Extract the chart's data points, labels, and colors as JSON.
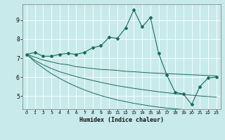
{
  "xlabel": "Humidex (Indice chaleur)",
  "bg_color": "#c8eaea",
  "line_color": "#1a6b5a",
  "grid_color": "#ffffff",
  "x_ticks": [
    0,
    1,
    2,
    3,
    4,
    5,
    6,
    7,
    8,
    9,
    10,
    11,
    12,
    13,
    14,
    15,
    16,
    17,
    18,
    19,
    20,
    21,
    22,
    23
  ],
  "y_ticks": [
    5,
    6,
    7,
    8,
    9
  ],
  "ylim": [
    4.3,
    9.85
  ],
  "xlim": [
    -0.5,
    23.5
  ],
  "main_line": [
    7.2,
    7.3,
    7.1,
    7.1,
    7.2,
    7.25,
    7.2,
    7.3,
    7.55,
    7.65,
    8.1,
    8.05,
    8.6,
    9.55,
    8.65,
    9.15,
    7.25,
    6.1,
    5.2,
    5.1,
    4.55,
    5.5,
    5.95,
    6.0
  ],
  "lower_line1": [
    7.2,
    7.05,
    6.9,
    6.8,
    6.7,
    6.65,
    6.55,
    6.5,
    6.45,
    6.4,
    6.38,
    6.35,
    6.3,
    6.28,
    6.25,
    6.22,
    6.2,
    6.18,
    6.16,
    6.14,
    6.12,
    6.1,
    6.08,
    6.06
  ],
  "lower_line2": [
    7.2,
    6.88,
    6.65,
    6.45,
    6.28,
    6.15,
    6.02,
    5.92,
    5.82,
    5.72,
    5.63,
    5.54,
    5.47,
    5.4,
    5.34,
    5.28,
    5.22,
    5.17,
    5.12,
    5.08,
    5.04,
    5.0,
    4.97,
    4.94
  ],
  "lower_line3": [
    7.2,
    6.8,
    6.48,
    6.18,
    5.93,
    5.7,
    5.5,
    5.32,
    5.16,
    5.02,
    4.9,
    4.79,
    4.7,
    4.61,
    4.54,
    4.47,
    4.41,
    4.36,
    4.32,
    4.28,
    4.24,
    4.22,
    4.19,
    4.17
  ]
}
